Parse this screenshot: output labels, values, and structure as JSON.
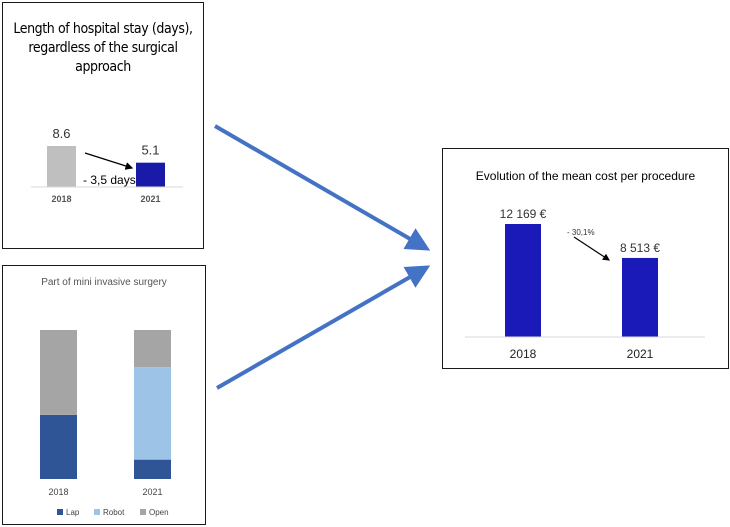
{
  "chart_data": [
    {
      "type": "bar",
      "title": "Length of hospital stay (days), regardless of the surgical approach",
      "categories": [
        "2018",
        "2021"
      ],
      "values": [
        8.6,
        5.1
      ],
      "value_labels": [
        "8.6",
        "5.1"
      ],
      "colors": [
        "#bfbfbf",
        "#1a1aa8"
      ],
      "annotation": "- 3,5 days",
      "ylim": [
        0,
        10
      ]
    },
    {
      "type": "bar",
      "stacked": true,
      "title": "Part of mini invasive surgery",
      "categories": [
        "2018",
        "2021"
      ],
      "series": [
        {
          "name": "Lap",
          "values": [
            43,
            13
          ],
          "color": "#2f5597"
        },
        {
          "name": "Robot",
          "values": [
            0,
            62
          ],
          "color": "#9dc3e6"
        },
        {
          "name": "Open",
          "values": [
            57,
            25
          ],
          "color": "#a5a5a5"
        }
      ],
      "ylim": [
        0,
        100
      ],
      "legend_position": "bottom"
    },
    {
      "type": "bar",
      "title": "Evolution of the mean cost per procedure",
      "categories": [
        "2018",
        "2021"
      ],
      "values": [
        12169,
        8513
      ],
      "value_labels": [
        "12 169  €",
        "8 513  €"
      ],
      "colors": [
        "#1a1ab8",
        "#1a1ab8"
      ],
      "annotation": "- 30,1%",
      "ylim": [
        0,
        14000
      ]
    }
  ],
  "arrow_color": "#4472c4"
}
